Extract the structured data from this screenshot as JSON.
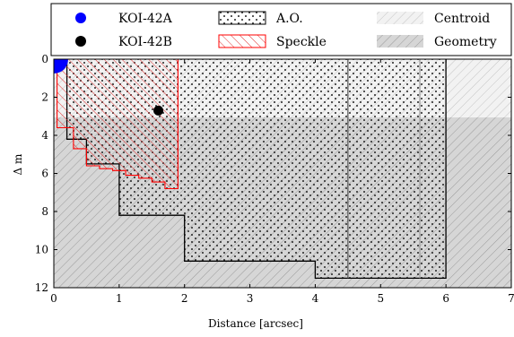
{
  "chart_data": {
    "type": "area",
    "title": "",
    "xlabel": "Distance [arcsec]",
    "ylabel": "Δ m",
    "xlim": [
      0,
      7
    ],
    "ylim": [
      12,
      0
    ],
    "x_ticks": [
      0,
      1,
      2,
      3,
      4,
      5,
      6,
      7
    ],
    "y_ticks": [
      0,
      2,
      4,
      6,
      8,
      10,
      12
    ],
    "x_tick_labels": [
      "0",
      "1",
      "2",
      "3",
      "4",
      "5",
      "6",
      "7"
    ],
    "y_tick_labels": [
      "0",
      "2",
      "4",
      "6",
      "8",
      "10",
      "12"
    ],
    "legend_position": "top",
    "legend": [
      {
        "label": "KOI-42A",
        "kind": "marker",
        "color": "#0000ff"
      },
      {
        "label": "A.O.",
        "kind": "dots",
        "color": "#000000"
      },
      {
        "label": "Centroid",
        "kind": "hatch-light",
        "color": "#bbbbbb"
      },
      {
        "label": "KOI-42B",
        "kind": "marker",
        "color": "#000000"
      },
      {
        "label": "Speckle",
        "kind": "hatch-red",
        "color": "#ff0000"
      },
      {
        "label": "Geometry",
        "kind": "hatch-gray",
        "color": "#888888"
      }
    ],
    "series": [
      {
        "name": "KOI-42A",
        "type": "point",
        "x": 0,
        "y": 0,
        "color": "#0000ff"
      },
      {
        "name": "KOI-42B",
        "type": "point",
        "x": 1.6,
        "y": 2.7,
        "color": "#000000"
      },
      {
        "name": "A.O.",
        "type": "step-region",
        "color": "#000000",
        "x": [
          0.2,
          0.2,
          0.5,
          0.5,
          1.0,
          1.0,
          2.0,
          2.0,
          4.0,
          4.0,
          6.0,
          6.0
        ],
        "y": [
          0.0,
          4.2,
          4.2,
          5.5,
          5.5,
          8.2,
          8.2,
          10.6,
          10.6,
          11.5,
          11.5,
          0.0
        ]
      },
      {
        "name": "Speckle",
        "type": "step-region",
        "color": "#ff0000",
        "x": [
          0.05,
          0.05,
          0.3,
          0.3,
          0.5,
          0.5,
          0.7,
          0.7,
          0.9,
          0.9,
          1.1,
          1.1,
          1.3,
          1.3,
          1.5,
          1.5,
          1.7,
          1.7,
          1.9,
          1.9
        ],
        "y": [
          0.0,
          3.6,
          3.6,
          4.7,
          4.7,
          5.6,
          5.6,
          5.75,
          5.75,
          5.85,
          5.85,
          6.1,
          6.1,
          6.25,
          6.25,
          6.45,
          6.45,
          6.8,
          6.8,
          0.0
        ]
      },
      {
        "name": "Centroid",
        "type": "region",
        "color": "#bbbbbb",
        "x": [
          0,
          7
        ],
        "y": [
          0,
          3.05
        ]
      },
      {
        "name": "Geometry",
        "type": "region",
        "color": "#888888",
        "x": [
          0,
          7
        ],
        "y": [
          3.05,
          12
        ]
      }
    ],
    "vertical_lines": [
      {
        "x": 4.5,
        "y": [
          0,
          11.5
        ],
        "color": "#555555"
      },
      {
        "x": 5.6,
        "y": [
          0,
          11.5
        ],
        "color": "#999999"
      }
    ],
    "grid": false
  }
}
